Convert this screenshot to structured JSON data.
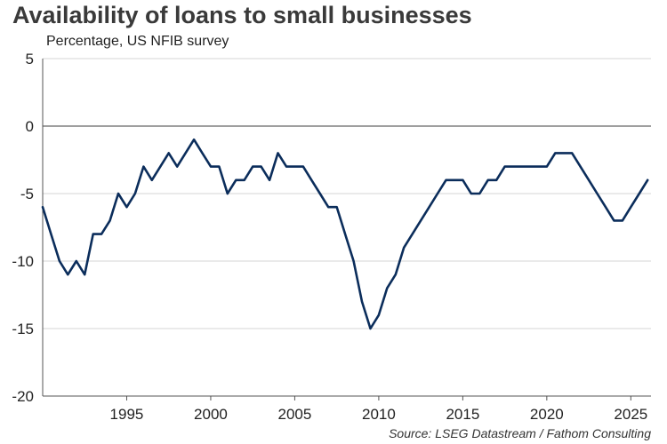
{
  "header": {
    "title": "Availability of loans to small businesses",
    "subtitle": "Percentage, US NFIB survey"
  },
  "footer": {
    "source": "Source: LSEG Datastream / Fathom Consulting"
  },
  "chart_data": {
    "type": "line",
    "title": "Availability of loans to small businesses",
    "subtitle": "Percentage, US NFIB survey",
    "xlabel": "",
    "ylabel": "",
    "xlim": [
      1990,
      2026.2
    ],
    "ylim": [
      -20,
      5
    ],
    "y_ticks": [
      5,
      0,
      -5,
      -10,
      -15,
      -20
    ],
    "x_ticks": [
      1995,
      2000,
      2005,
      2010,
      2015,
      2020,
      2025
    ],
    "grid": "horizontal",
    "zero_line": true,
    "line_color": "#0b2d5b",
    "series": [
      {
        "name": "",
        "x": [
          1990.0,
          1990.5,
          1991.0,
          1991.5,
          1992.0,
          1992.5,
          1993.0,
          1993.5,
          1994.0,
          1994.5,
          1995.0,
          1995.5,
          1996.0,
          1996.5,
          1997.0,
          1997.5,
          1998.0,
          1998.5,
          1999.0,
          1999.5,
          2000.0,
          2000.5,
          2001.0,
          2001.5,
          2002.0,
          2002.5,
          2003.0,
          2003.5,
          2004.0,
          2004.5,
          2005.0,
          2005.5,
          2006.0,
          2006.5,
          2007.0,
          2007.5,
          2008.0,
          2008.5,
          2009.0,
          2009.5,
          2010.0,
          2010.5,
          2011.0,
          2011.5,
          2012.0,
          2012.5,
          2013.0,
          2013.5,
          2014.0,
          2014.5,
          2015.0,
          2015.5,
          2016.0,
          2016.5,
          2017.0,
          2017.5,
          2018.0,
          2018.5,
          2019.0,
          2019.5,
          2020.0,
          2020.5,
          2021.0,
          2021.5,
          2022.0,
          2022.5,
          2023.0,
          2023.5,
          2024.0,
          2024.5,
          2025.0,
          2025.5,
          2026.0
        ],
        "y": [
          -6,
          -8,
          -10,
          -11,
          -10,
          -11,
          -8,
          -8,
          -7,
          -5,
          -6,
          -5,
          -3,
          -4,
          -3,
          -2,
          -3,
          -2,
          -1,
          -2,
          -3,
          -3,
          -5,
          -4,
          -4,
          -3,
          -3,
          -4,
          -2,
          -3,
          -3,
          -3,
          -4,
          -5,
          -6,
          -6,
          -8,
          -10,
          -13,
          -15,
          -14,
          -12,
          -11,
          -9,
          -8,
          -7,
          -6,
          -5,
          -4,
          -4,
          -4,
          -5,
          -5,
          -4,
          -4,
          -3,
          -3,
          -3,
          -3,
          -3,
          -3,
          -2,
          -2,
          -2,
          -3,
          -4,
          -5,
          -6,
          -7,
          -7,
          -6,
          -5,
          -4
        ]
      }
    ]
  }
}
